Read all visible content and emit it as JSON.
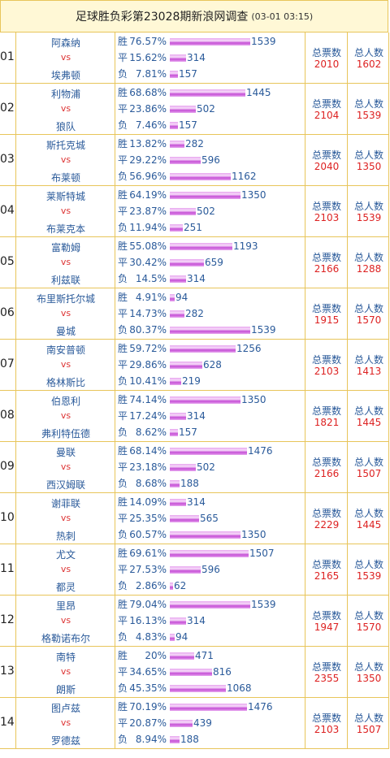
{
  "title": "足球胜负彩第23028期新浪网调查",
  "datetime": "(03-01 03:15)",
  "labels": {
    "win": "胜",
    "draw": "平",
    "loss": "负",
    "vs": "vs",
    "total_votes": "总票数",
    "total_people": "总人数"
  },
  "matches": [
    {
      "no": "01",
      "home": "阿森纳",
      "away": "埃弗顿",
      "win_pct": "76.57%",
      "win": 1539,
      "draw_pct": "15.62%",
      "draw": 314,
      "loss_pct": "7.81%",
      "loss": 157,
      "votes": 2010,
      "people": 1602
    },
    {
      "no": "02",
      "home": "利物浦",
      "away": "狼队",
      "win_pct": "68.68%",
      "win": 1445,
      "draw_pct": "23.86%",
      "draw": 502,
      "loss_pct": "7.46%",
      "loss": 157,
      "votes": 2104,
      "people": 1539
    },
    {
      "no": "03",
      "home": "斯托克城",
      "away": "布莱顿",
      "win_pct": "13.82%",
      "win": 282,
      "draw_pct": "29.22%",
      "draw": 596,
      "loss_pct": "56.96%",
      "loss": 1162,
      "votes": 2040,
      "people": 1350
    },
    {
      "no": "04",
      "home": "莱斯特城",
      "away": "布莱克本",
      "win_pct": "64.19%",
      "win": 1350,
      "draw_pct": "23.87%",
      "draw": 502,
      "loss_pct": "11.94%",
      "loss": 251,
      "votes": 2103,
      "people": 1539
    },
    {
      "no": "05",
      "home": "富勒姆",
      "away": "利兹联",
      "win_pct": "55.08%",
      "win": 1193,
      "draw_pct": "30.42%",
      "draw": 659,
      "loss_pct": "14.5%",
      "loss": 314,
      "votes": 2166,
      "people": 1288
    },
    {
      "no": "06",
      "home": "布里斯托尔城",
      "away": "曼城",
      "win_pct": "4.91%",
      "win": 94,
      "draw_pct": "14.73%",
      "draw": 282,
      "loss_pct": "80.37%",
      "loss": 1539,
      "votes": 1915,
      "people": 1570
    },
    {
      "no": "07",
      "home": "南安普顿",
      "away": "格林斯比",
      "win_pct": "59.72%",
      "win": 1256,
      "draw_pct": "29.86%",
      "draw": 628,
      "loss_pct": "10.41%",
      "loss": 219,
      "votes": 2103,
      "people": 1413
    },
    {
      "no": "08",
      "home": "伯恩利",
      "away": "弗利特伍德",
      "win_pct": "74.14%",
      "win": 1350,
      "draw_pct": "17.24%",
      "draw": 314,
      "loss_pct": "8.62%",
      "loss": 157,
      "votes": 1821,
      "people": 1445
    },
    {
      "no": "09",
      "home": "曼联",
      "away": "西汉姆联",
      "win_pct": "68.14%",
      "win": 1476,
      "draw_pct": "23.18%",
      "draw": 502,
      "loss_pct": "8.68%",
      "loss": 188,
      "votes": 2166,
      "people": 1507
    },
    {
      "no": "10",
      "home": "谢菲联",
      "away": "热刺",
      "win_pct": "14.09%",
      "win": 314,
      "draw_pct": "25.35%",
      "draw": 565,
      "loss_pct": "60.57%",
      "loss": 1350,
      "votes": 2229,
      "people": 1445
    },
    {
      "no": "11",
      "home": "尤文",
      "away": "都灵",
      "win_pct": "69.61%",
      "win": 1507,
      "draw_pct": "27.53%",
      "draw": 596,
      "loss_pct": "2.86%",
      "loss": 62,
      "votes": 2165,
      "people": 1539
    },
    {
      "no": "12",
      "home": "里昂",
      "away": "格勒诺布尔",
      "win_pct": "79.04%",
      "win": 1539,
      "draw_pct": "16.13%",
      "draw": 314,
      "loss_pct": "4.83%",
      "loss": 94,
      "votes": 1947,
      "people": 1570
    },
    {
      "no": "13",
      "home": "南特",
      "away": "朗斯",
      "win_pct": "20%",
      "win": 471,
      "draw_pct": "34.65%",
      "draw": 816,
      "loss_pct": "45.35%",
      "loss": 1068,
      "votes": 2355,
      "people": 1350
    },
    {
      "no": "14",
      "home": "图卢兹",
      "away": "罗德兹",
      "win_pct": "70.19%",
      "win": 1476,
      "draw_pct": "20.87%",
      "draw": 439,
      "loss_pct": "8.94%",
      "loss": 188,
      "votes": 2103,
      "people": 1507
    }
  ]
}
